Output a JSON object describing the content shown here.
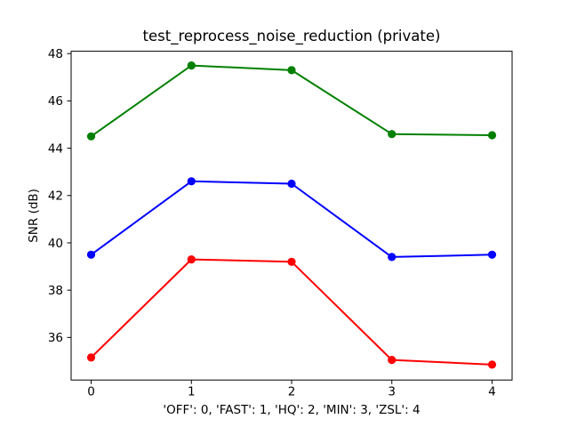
{
  "figure": {
    "background_color": "#ffffff",
    "frame_color": "#000000"
  },
  "chart_data": {
    "type": "line",
    "title": "test_reprocess_noise_reduction (private)",
    "xlabel": "'OFF': 0, 'FAST': 1, 'HQ': 2, 'MIN': 3, 'ZSL': 4",
    "ylabel": "SNR (dB)",
    "x": [
      0,
      1,
      2,
      3,
      4
    ],
    "xticks": [
      0,
      1,
      2,
      3,
      4
    ],
    "yticks": [
      36,
      38,
      40,
      42,
      44,
      46,
      48
    ],
    "xlim": [
      -0.2,
      4.2
    ],
    "ylim": [
      34.2,
      48.1
    ],
    "grid": false,
    "legend": null,
    "marker": "circle",
    "series": [
      {
        "name": "green-series",
        "color": "#008000",
        "values": [
          44.5,
          47.5,
          47.3,
          44.6,
          44.55
        ]
      },
      {
        "name": "blue-series",
        "color": "#0000ff",
        "values": [
          39.5,
          42.6,
          42.5,
          39.4,
          39.5
        ]
      },
      {
        "name": "red-series",
        "color": "#ff0000",
        "values": [
          35.15,
          39.3,
          39.2,
          35.05,
          34.85
        ]
      }
    ]
  }
}
